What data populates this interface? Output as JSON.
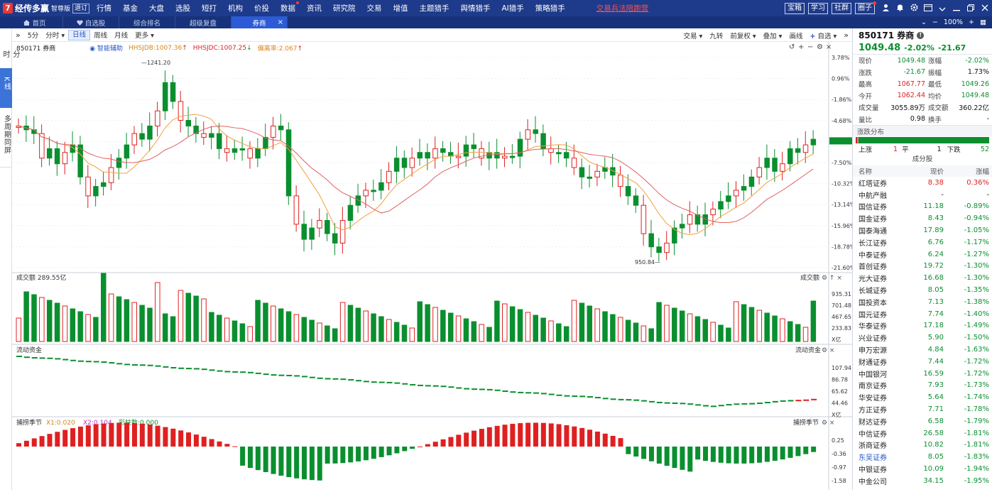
{
  "app": {
    "logo_mark": "7",
    "name": "经传多赢",
    "edition": "智尊版",
    "open": "退订"
  },
  "menu": [
    "行情",
    "基金",
    "大盘",
    "选股",
    "短打",
    "机构",
    "价投",
    "数据",
    "资讯",
    "研究院",
    "交易",
    "增值",
    "主题猎手",
    "舆情猎手",
    "AI猎手",
    "策略猎手"
  ],
  "menu_hot": "交易兵法陪跑营",
  "top_buttons": [
    "宝箱",
    "学习",
    "社群",
    "圈子"
  ],
  "tabs": [
    {
      "label": "首页",
      "icon": "home-icon"
    },
    {
      "label": "自选股",
      "icon": "heart-icon"
    },
    {
      "label": "综合排名"
    },
    {
      "label": "超级复盘"
    },
    {
      "label": "券商",
      "active": true
    }
  ],
  "tab_right": {
    "zoom": "100%"
  },
  "left_tabs": [
    "分时",
    "K线",
    "多周期同屏"
  ],
  "toolbar": {
    "left": [
      "5分",
      "分时",
      "日线",
      "周线",
      "月线",
      "更多"
    ],
    "right": [
      "交易",
      "九转",
      "前复权",
      "叠加",
      "画线",
      "自选"
    ]
  },
  "info": {
    "code_name": "850171 券商",
    "assist": "智能辅助",
    "hhsjdb": "HHSJDB:1007.36",
    "hhsjdc": "HHSJDC:1007.25",
    "deviation": "偏离率:2.067"
  },
  "price_axis": [
    "3.78%",
    "0.96%",
    "-1.86%",
    "-4.68%",
    "-6.45%",
    "-7.50%",
    "-10.32%",
    "-13.14%",
    "-15.96%",
    "-18.78%",
    "-21.60%"
  ],
  "annotations": {
    "high": "1241.20",
    "low": "950.84"
  },
  "volume": {
    "label": "成交额",
    "value": "289.55亿",
    "right_label": "成交额",
    "axis": [
      "935.31",
      "701.48",
      "467.65",
      "233.83",
      "X亿"
    ]
  },
  "flow": {
    "label": "流动资金",
    "right_label": "流动资金",
    "axis": [
      "107.94",
      "86.78",
      "65.62",
      "44.46",
      "X亿"
    ]
  },
  "season": {
    "label": "捕捞季节",
    "x1": "X1:0.020",
    "x2": "X2:0.104",
    "bar": "彩柱数:0.000",
    "right_label": "捕捞季节",
    "axis": [
      "0.25",
      "-0.36",
      "-0.97",
      "-1.58"
    ]
  },
  "colors": {
    "up": "#e02020",
    "down": "#0a8f2f",
    "ma1": "#f0a040",
    "ma2": "#e06060",
    "accent": "#2456c4"
  },
  "quote": {
    "code": "850171",
    "name": "券商",
    "price": "1049.48",
    "pct": "-2.02%",
    "chg": "-21.67",
    "rows": [
      [
        "现价",
        "1049.48",
        "涨幅",
        "-2.02%"
      ],
      [
        "涨跌",
        "-21.67",
        "振幅",
        "1.73%"
      ],
      [
        "最高",
        "1067.77",
        "最低",
        "1049.26"
      ],
      [
        "今开",
        "1062.44",
        "均价",
        "1049.48"
      ],
      [
        "成交量",
        "3055.89万",
        "成交额",
        "360.22亿"
      ],
      [
        "量比",
        "0.98",
        "换手",
        "-"
      ]
    ]
  },
  "distribution": {
    "title": "涨跌分布",
    "up_label": "上涨",
    "up": "1",
    "flat_label": "平",
    "flat": "1",
    "down_label": "下跌",
    "down": "52"
  },
  "constituents": {
    "title": "成分股",
    "headers": [
      "名称",
      "现价",
      "涨幅"
    ],
    "rows": [
      [
        "红塔证券",
        "8.38",
        "0.36%"
      ],
      [
        "中航产融",
        "-",
        "-"
      ],
      [
        "国信证券",
        "11.18",
        "-0.89%"
      ],
      [
        "国金证券",
        "8.43",
        "-0.94%"
      ],
      [
        "国泰海通",
        "17.89",
        "-1.05%"
      ],
      [
        "长江证券",
        "6.76",
        "-1.17%"
      ],
      [
        "中泰证券",
        "6.24",
        "-1.27%"
      ],
      [
        "首创证券",
        "19.72",
        "-1.30%"
      ],
      [
        "光大证券",
        "16.68",
        "-1.30%"
      ],
      [
        "长城证券",
        "8.05",
        "-1.35%"
      ],
      [
        "国投资本",
        "7.13",
        "-1.38%"
      ],
      [
        "国元证券",
        "7.74",
        "-1.40%"
      ],
      [
        "华泰证券",
        "17.18",
        "-1.49%"
      ],
      [
        "兴业证券",
        "5.90",
        "-1.50%"
      ],
      [
        "申万宏源",
        "4.84",
        "-1.63%"
      ],
      [
        "财通证券",
        "7.44",
        "-1.72%"
      ],
      [
        "中国银河",
        "16.59",
        "-1.72%"
      ],
      [
        "南京证券",
        "7.93",
        "-1.73%"
      ],
      [
        "华安证券",
        "5.64",
        "-1.74%"
      ],
      [
        "方正证券",
        "7.71",
        "-1.78%"
      ],
      [
        "财达证券",
        "6.58",
        "-1.79%"
      ],
      [
        "中信证券",
        "26.58",
        "-1.81%"
      ],
      [
        "浙商证券",
        "10.82",
        "-1.81%"
      ],
      [
        "东吴证券",
        "8.05",
        "-1.83%"
      ],
      [
        "中银证券",
        "10.09",
        "-1.94%"
      ],
      [
        "中金公司",
        "34.15",
        "-1.95%"
      ]
    ]
  }
}
